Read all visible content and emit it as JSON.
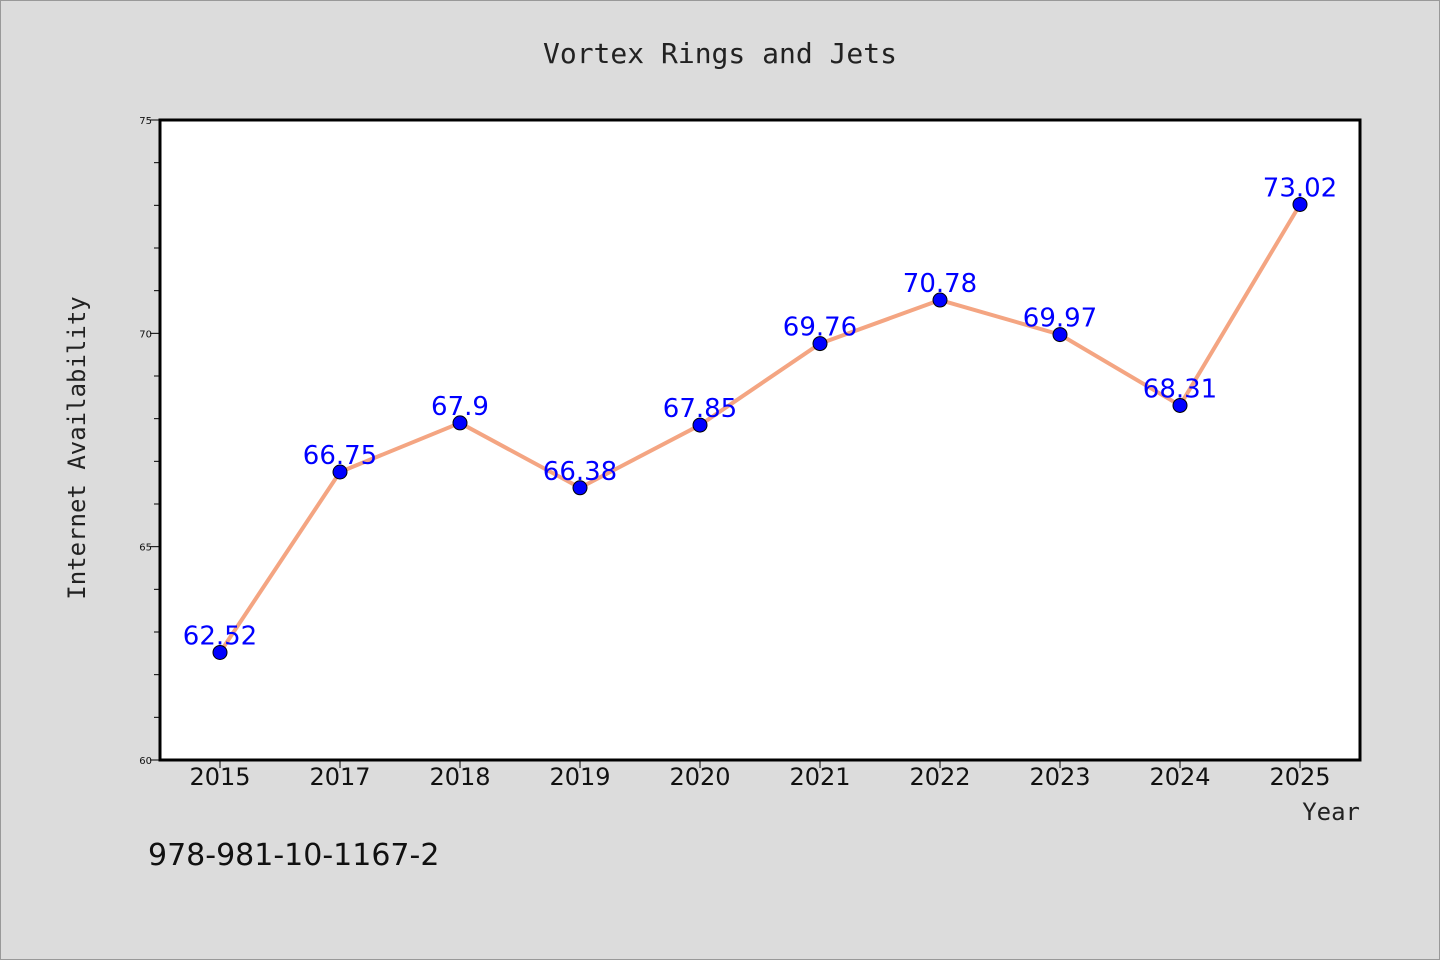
{
  "chart_data": {
    "type": "line",
    "title": "Vortex Rings and Jets",
    "xlabel": "Year",
    "ylabel": "Internet Availability",
    "categories": [
      "2015",
      "2017",
      "2018",
      "2019",
      "2020",
      "2021",
      "2022",
      "2023",
      "2024",
      "2025"
    ],
    "series": [
      {
        "values": [
          62.52,
          66.75,
          67.9,
          66.38,
          67.85,
          69.76,
          70.78,
          69.97,
          68.31,
          73.02
        ],
        "labels": [
          "62.52",
          "66.75",
          "67.9",
          "66.38",
          "67.85",
          "69.76",
          "70.78",
          "69.97",
          "68.31",
          "73.02"
        ],
        "line_color": "#f4a582",
        "marker_color": "#0000ff"
      }
    ],
    "ylim": [
      60,
      75
    ],
    "yticks": [
      "60",
      "65",
      "70",
      "75"
    ],
    "grid": false,
    "legend": "none"
  },
  "footer": {
    "isbn": "978-981-10-1167-2"
  },
  "colors": {
    "background": "#dcdcdc",
    "plot_background": "#ffffff",
    "data_label": "#0000ff"
  }
}
